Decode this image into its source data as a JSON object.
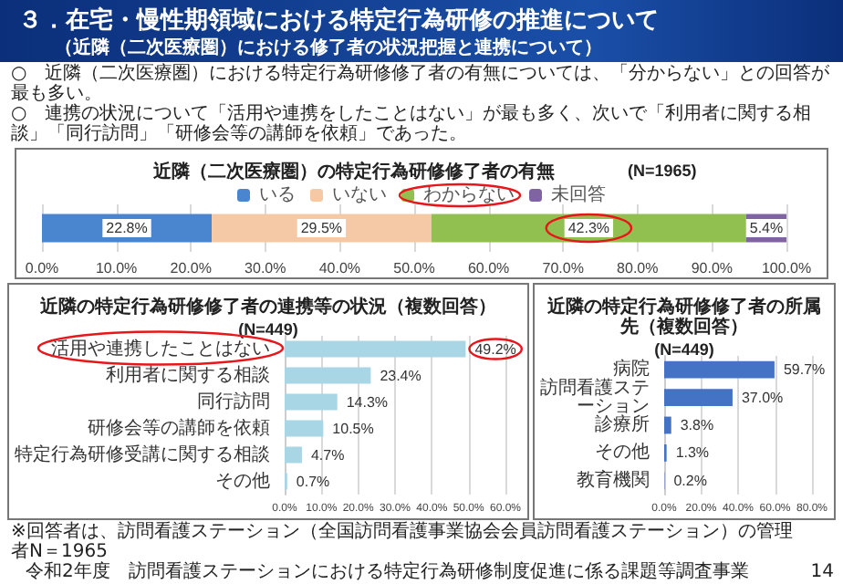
{
  "chart_data": [
    {
      "type": "bar",
      "orientation": "horizontal",
      "stacked": true,
      "title": "近隣（二次医療圏）の特定行為研修修了者の有無",
      "subtitle": "(N=1965)",
      "annotations": [
        "３．在宅・慢性期領域における特定行為研修の推進について",
        "（近隣（二次医療圏）における修了者の状況把握と連携について）",
        "○　近隣（二次医療圏）における特定行為研修修了者の有無については、「分からない」との回答が最も多い。",
        "○　連携の状況について「活用や連携をしたことはない」が最も多く、次いで「利用者に関する相談」「同行訪問」「研修会等の講師を依頼」であった。"
      ],
      "categories": [
        null
      ],
      "series": [
        {
          "name": "いる",
          "color": "#4a86d0",
          "values": [
            22.8
          ],
          "value_labels": [
            "22.8%"
          ]
        },
        {
          "name": "いない",
          "color": "#f6c9a6",
          "values": [
            29.5
          ],
          "value_labels": [
            "29.5%"
          ]
        },
        {
          "name": "わからない",
          "color": "#92c050",
          "values": [
            42.3
          ],
          "value_labels": [
            "42.3%"
          ]
        },
        {
          "name": "未回答",
          "color": "#8064a2",
          "values": [
            5.4
          ],
          "value_labels": [
            "5.4%"
          ]
        }
      ],
      "xlim": [
        0,
        100
      ],
      "xticks": [
        {
          "value": 0,
          "label": "0.0%"
        },
        {
          "value": 10,
          "label": "10.0%"
        },
        {
          "value": 20,
          "label": "20.0%"
        },
        {
          "value": 30,
          "label": "30.0%"
        },
        {
          "value": 40,
          "label": "40.0%"
        },
        {
          "value": 50,
          "label": "50.0%"
        },
        {
          "value": 60,
          "label": "60.0%"
        },
        {
          "value": 70,
          "label": "70.0%"
        },
        {
          "value": 80,
          "label": "80.0%"
        },
        {
          "value": 90,
          "label": "90.0%"
        },
        {
          "value": 100,
          "label": "100.0%"
        }
      ],
      "grid": "x",
      "legend": "top"
    },
    {
      "type": "bar",
      "orientation": "horizontal",
      "title": "近隣の特定行為研修修了者の連携等の状況（複数回答）",
      "subtitle": "(N=449)",
      "categories": [
        "活用や連携したことはない",
        "利用者に関する相談",
        "同行訪問",
        "研修会等の講師を依頼",
        "特定行為研修受講に関する相談",
        "その他"
      ],
      "series": [
        {
          "color": "#a9d6e5",
          "values": [
            49.2,
            23.4,
            14.3,
            10.5,
            4.7,
            0.7
          ],
          "value_labels": [
            "49.2%",
            "23.4%",
            "14.3%",
            "10.5%",
            "4.7%",
            "0.7%"
          ]
        }
      ],
      "xlim": [
        0,
        60
      ],
      "xticks": [
        {
          "value": 0,
          "label": "0.0%"
        },
        {
          "value": 10,
          "label": "10.0%"
        },
        {
          "value": 20,
          "label": "20.0%"
        },
        {
          "value": 30,
          "label": "30.0%"
        },
        {
          "value": 40,
          "label": "40.0%"
        },
        {
          "value": 50,
          "label": "50.0%"
        },
        {
          "value": 60,
          "label": "60.0%"
        }
      ],
      "grid": "x",
      "legend": false
    },
    {
      "type": "bar",
      "orientation": "horizontal",
      "title": "近隣の特定行為研修修了者の所属先（複数回答）",
      "subtitle": "(N=449)",
      "annotations": [
        "※回答者は、訪問看護ステーション（全国訪問看護事業協会会員訪問看護ステーション）の管理者N＝1965",
        "令和2年度　訪問看護ステーションにおける特定行為研修制度促進に係る課題等調査事業",
        "14"
      ],
      "categories": [
        "病院",
        "訪問看護ステーション",
        "診療所",
        "その他",
        "教育機関"
      ],
      "series": [
        {
          "color": "#4472c4",
          "values": [
            59.7,
            37.0,
            3.8,
            1.3,
            0.2
          ],
          "value_labels": [
            "59.7%",
            "37.0%",
            "3.8%",
            "1.3%",
            "0.2%"
          ]
        }
      ],
      "xlim": [
        0,
        80
      ],
      "xticks": [
        {
          "value": 0,
          "label": "0.0%"
        },
        {
          "value": 20,
          "label": "20.0%"
        },
        {
          "value": 40,
          "label": "40.0%"
        },
        {
          "value": 60,
          "label": "60.0%"
        },
        {
          "value": 80,
          "label": "80.0%"
        }
      ],
      "grid": "x",
      "legend": false
    }
  ]
}
